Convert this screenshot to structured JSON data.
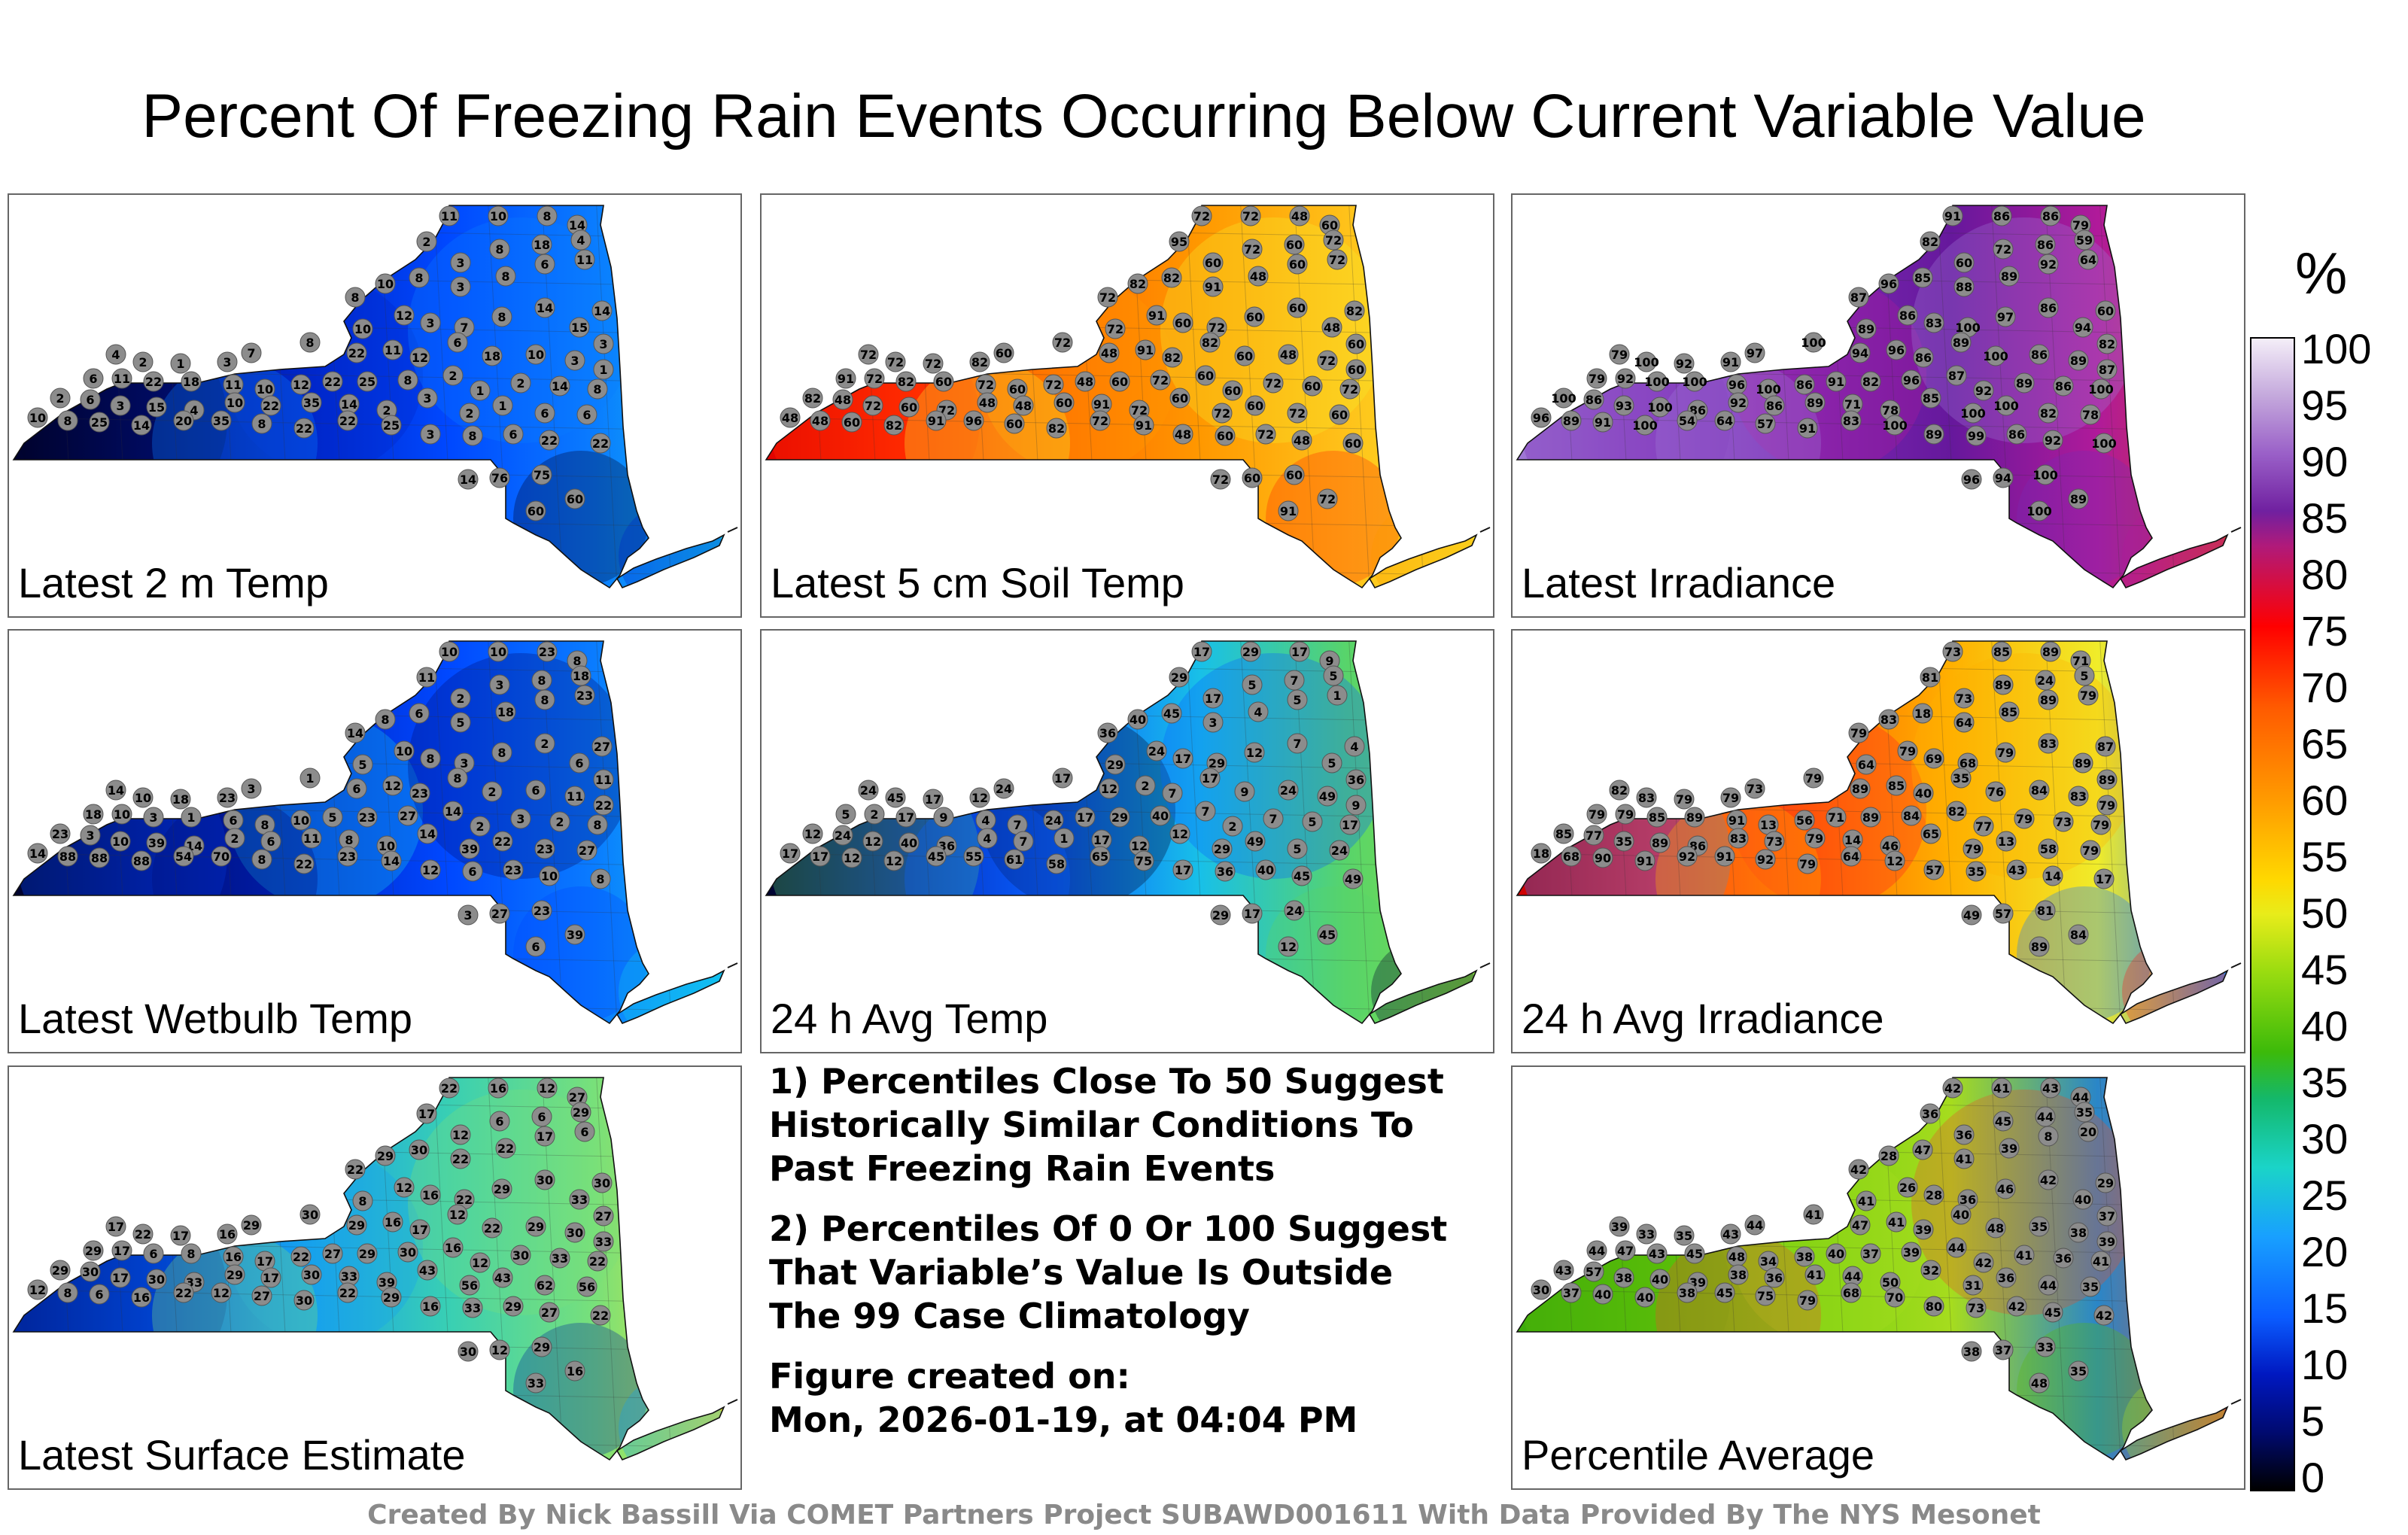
{
  "title": "Percent Of Freezing Rain Events Occurring Below Current Variable Value",
  "colorbar": {
    "unit": "%",
    "ticks": [
      "100",
      "95",
      "90",
      "85",
      "80",
      "75",
      "70",
      "65",
      "60",
      "55",
      "50",
      "45",
      "40",
      "35",
      "30",
      "25",
      "20",
      "15",
      "10",
      "5",
      "0"
    ]
  },
  "panels": [
    {
      "label": "Latest 2 m Temp",
      "fill": [
        "#00022a",
        "#000f7a",
        "#0026c8",
        "#0048ff",
        "#0a7cff",
        "#13c8ee"
      ],
      "stations": [
        11,
        10,
        8,
        14,
        8,
        10,
        2,
        3,
        8,
        18,
        4,
        8,
        3,
        8,
        6,
        11,
        14,
        10,
        12,
        3,
        7,
        8,
        14,
        15,
        3,
        4,
        2,
        1,
        3,
        7,
        8,
        22,
        11,
        12,
        6,
        18,
        10,
        3,
        1,
        6,
        11,
        22,
        18,
        11,
        10,
        12,
        22,
        25,
        8,
        2,
        1,
        2,
        14,
        8,
        2,
        6,
        3,
        15,
        4,
        10,
        22,
        35,
        14,
        2,
        3,
        2,
        1,
        6,
        6,
        10,
        8,
        25,
        14,
        20,
        35,
        8,
        22,
        22,
        25,
        3,
        8,
        6,
        22,
        22,
        14,
        76,
        75,
        60,
        60
      ]
    },
    {
      "label": "Latest 5 cm Soil Temp",
      "fill": [
        "#e00000",
        "#ff2a00",
        "#ff6a00",
        "#ff9800",
        "#ffc21a",
        "#f7ec2a"
      ],
      "stations": [
        72,
        72,
        48,
        60,
        72,
        82,
        95,
        60,
        72,
        60,
        72,
        82,
        91,
        48,
        60,
        72,
        82,
        72,
        91,
        60,
        72,
        60,
        60,
        48,
        60,
        72,
        72,
        72,
        82,
        60,
        72,
        48,
        91,
        82,
        82,
        60,
        48,
        72,
        60,
        91,
        72,
        82,
        60,
        72,
        60,
        72,
        48,
        60,
        72,
        60,
        60,
        72,
        60,
        72,
        82,
        48,
        72,
        60,
        72,
        48,
        48,
        60,
        91,
        72,
        60,
        72,
        60,
        72,
        60,
        48,
        48,
        60,
        82,
        91,
        96,
        60,
        82,
        72,
        91,
        48,
        60,
        72,
        48,
        60,
        72,
        60,
        60,
        72,
        91
      ]
    },
    {
      "label": "Latest Irradiance",
      "fill": [
        "#a07ad6",
        "#9050c8",
        "#7a2ab4",
        "#66189c",
        "#b01a9a",
        "#d83c2a"
      ],
      "stations": [
        91,
        86,
        86,
        79,
        87,
        96,
        82,
        60,
        72,
        86,
        59,
        85,
        88,
        89,
        92,
        64,
        60,
        89,
        86,
        83,
        100,
        97,
        86,
        94,
        82,
        79,
        100,
        92,
        91,
        97,
        100,
        94,
        96,
        86,
        89,
        100,
        86,
        89,
        87,
        79,
        92,
        100,
        100,
        96,
        100,
        86,
        91,
        82,
        96,
        87,
        92,
        89,
        86,
        100,
        100,
        86,
        93,
        100,
        86,
        92,
        86,
        89,
        71,
        78,
        85,
        100,
        100,
        82,
        78,
        96,
        89,
        91,
        100,
        54,
        64,
        57,
        91,
        83,
        100,
        89,
        99,
        86,
        92,
        100,
        96,
        94,
        100,
        89,
        100
      ]
    },
    {
      "label": "Latest Wetbulb Temp",
      "fill": [
        "#00022a",
        "#000f7a",
        "#0026c8",
        "#0048ff",
        "#0a7cff",
        "#13c8ee"
      ],
      "stations": [
        10,
        10,
        23,
        8,
        14,
        8,
        11,
        2,
        3,
        8,
        18,
        6,
        5,
        18,
        8,
        23,
        27,
        5,
        10,
        8,
        3,
        8,
        2,
        6,
        11,
        14,
        10,
        18,
        23,
        3,
        1,
        6,
        12,
        23,
        8,
        2,
        6,
        11,
        22,
        18,
        10,
        3,
        1,
        6,
        8,
        10,
        5,
        23,
        27,
        14,
        2,
        3,
        2,
        8,
        23,
        3,
        10,
        39,
        14,
        2,
        6,
        11,
        8,
        10,
        14,
        39,
        22,
        23,
        27,
        14,
        88,
        88,
        88,
        54,
        70,
        8,
        22,
        23,
        14,
        12,
        6,
        23,
        10,
        8,
        3,
        27,
        23,
        39,
        6
      ]
    },
    {
      "label": "24 h Avg Temp",
      "fill": [
        "#00022a",
        "#0018a0",
        "#0a60ff",
        "#18c0e8",
        "#58d46a",
        "#8ee33a"
      ],
      "stations": [
        17,
        29,
        17,
        9,
        36,
        40,
        29,
        17,
        5,
        7,
        5,
        45,
        3,
        4,
        5,
        1,
        4,
        29,
        24,
        17,
        29,
        12,
        7,
        5,
        36,
        24,
        45,
        17,
        12,
        24,
        17,
        12,
        2,
        7,
        17,
        9,
        24,
        49,
        9,
        5,
        2,
        17,
        9,
        4,
        7,
        24,
        17,
        29,
        40,
        7,
        2,
        7,
        5,
        17,
        12,
        24,
        12,
        40,
        36,
        4,
        7,
        1,
        17,
        12,
        12,
        29,
        49,
        5,
        24,
        17,
        17,
        12,
        12,
        45,
        55,
        61,
        58,
        65,
        75,
        17,
        36,
        40,
        45,
        49,
        29,
        17,
        24,
        45,
        12
      ]
    },
    {
      "label": "24 h Avg Irradiance",
      "fill": [
        "#cc0000",
        "#ff2020",
        "#ff6a00",
        "#ffb000",
        "#f0ec2a",
        "#1a7aff"
      ],
      "stations": [
        73,
        85,
        89,
        71,
        79,
        83,
        81,
        73,
        89,
        24,
        5,
        18,
        64,
        85,
        89,
        79,
        87,
        64,
        79,
        69,
        68,
        79,
        83,
        89,
        89,
        82,
        83,
        79,
        79,
        73,
        79,
        89,
        85,
        40,
        35,
        76,
        84,
        83,
        79,
        79,
        79,
        85,
        89,
        91,
        13,
        56,
        71,
        89,
        84,
        82,
        77,
        79,
        73,
        79,
        85,
        77,
        35,
        89,
        86,
        83,
        73,
        79,
        14,
        46,
        65,
        79,
        13,
        58,
        79,
        18,
        68,
        90,
        91,
        92,
        91,
        92,
        79,
        64,
        12,
        57,
        35,
        43,
        14,
        17,
        49,
        57,
        81,
        84,
        89
      ]
    },
    {
      "label": "Latest Surface Estimate",
      "fill": [
        "#00249a",
        "#0050e6",
        "#16a0ee",
        "#38cfb4",
        "#78e07a",
        "#f4e82a"
      ],
      "stations": [
        22,
        16,
        12,
        27,
        22,
        29,
        17,
        12,
        6,
        6,
        29,
        30,
        22,
        22,
        17,
        6,
        30,
        8,
        12,
        16,
        22,
        29,
        30,
        33,
        27,
        17,
        22,
        17,
        16,
        29,
        30,
        29,
        16,
        17,
        12,
        22,
        29,
        30,
        33,
        29,
        17,
        6,
        8,
        16,
        17,
        22,
        27,
        29,
        30,
        16,
        12,
        30,
        33,
        22,
        29,
        30,
        17,
        30,
        33,
        29,
        17,
        30,
        33,
        39,
        43,
        56,
        43,
        62,
        56,
        12,
        8,
        6,
        16,
        22,
        12,
        27,
        30,
        22,
        29,
        16,
        33,
        29,
        27,
        22,
        30,
        12,
        29,
        16,
        33
      ]
    },
    {
      "label": "Percentile Average",
      "fill": [
        "#3aa80a",
        "#58bc0a",
        "#7ad010",
        "#a6dc1e",
        "#2a86c8",
        "#e8522a"
      ],
      "stations": [
        42,
        41,
        43,
        44,
        42,
        28,
        36,
        36,
        45,
        44,
        35,
        47,
        41,
        39,
        8,
        20,
        29,
        41,
        26,
        28,
        36,
        46,
        42,
        40,
        37,
        39,
        33,
        35,
        43,
        44,
        41,
        47,
        41,
        39,
        40,
        48,
        35,
        38,
        39,
        44,
        47,
        43,
        45,
        48,
        34,
        38,
        40,
        37,
        39,
        44,
        42,
        41,
        36,
        41,
        43,
        57,
        38,
        40,
        39,
        38,
        36,
        41,
        44,
        50,
        32,
        31,
        36,
        44,
        35,
        30,
        37,
        40,
        40,
        38,
        45,
        75,
        79,
        68,
        70,
        80,
        73,
        42,
        45,
        42,
        38,
        37,
        33,
        35,
        48
      ]
    }
  ],
  "notes": [
    "1) Percentiles Close To 50 Suggest Historically Similar Conditions To Past Freezing Rain Events",
    "2) Percentiles Of 0 Or 100 Suggest That Variable’s Value Is Outside The 99 Case Climatology",
    "Figure created on:",
    "Mon, 2026-01-19, at 04:04 PM"
  ],
  "credit": "Created By Nick Bassill Via COMET Partners Project SUBAWD001611 With Data Provided By The NYS Mesonet"
}
